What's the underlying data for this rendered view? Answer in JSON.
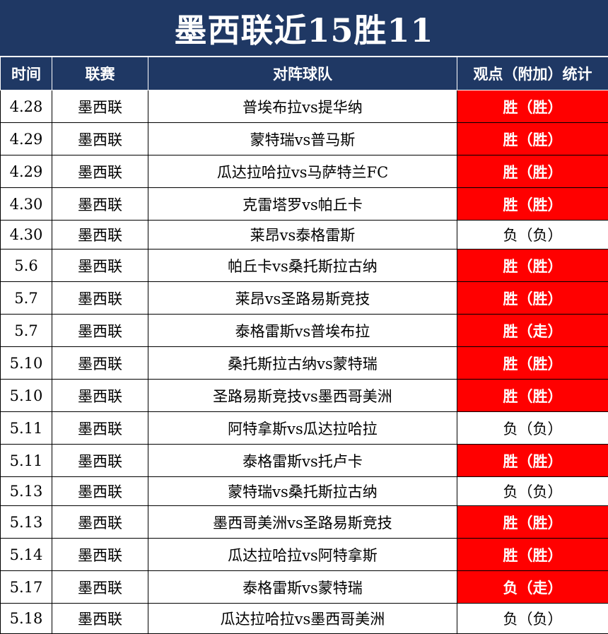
{
  "title": "墨西联近15胜11",
  "headers": {
    "time": "时间",
    "league": "联赛",
    "match": "对阵球队",
    "result": "观点（附加）统计"
  },
  "colors": {
    "header_bg": "#1f3864",
    "win_bg": "#ff0000"
  },
  "rows": [
    {
      "time": "4.28",
      "league": "墨西联",
      "match": "普埃布拉vs提华纳",
      "result": "胜（胜）",
      "highlight": true
    },
    {
      "time": "4.29",
      "league": "墨西联",
      "match": "蒙特瑞vs普马斯",
      "result": "胜（胜）",
      "highlight": true
    },
    {
      "time": "4.29",
      "league": "墨西联",
      "match": "瓜达拉哈拉vs马萨特兰FC",
      "result": "胜（胜）",
      "highlight": true
    },
    {
      "time": "4.30",
      "league": "墨西联",
      "match": "克雷塔罗vs帕丘卡",
      "result": "胜（胜）",
      "highlight": true
    },
    {
      "time": "4.30",
      "league": "墨西联",
      "match": "莱昂vs泰格雷斯",
      "result": "负（负）",
      "highlight": false
    },
    {
      "time": "5.6",
      "league": "墨西联",
      "match": "帕丘卡vs桑托斯拉古纳",
      "result": "胜（胜）",
      "highlight": true
    },
    {
      "time": "5.7",
      "league": "墨西联",
      "match": "莱昂vs圣路易斯竞技",
      "result": "胜（胜）",
      "highlight": true
    },
    {
      "time": "5.7",
      "league": "墨西联",
      "match": "泰格雷斯vs普埃布拉",
      "result": "胜（走）",
      "highlight": true
    },
    {
      "time": "5.10",
      "league": "墨西联",
      "match": "桑托斯拉古纳vs蒙特瑞",
      "result": "胜（胜）",
      "highlight": true
    },
    {
      "time": "5.10",
      "league": "墨西联",
      "match": "圣路易斯竞技vs墨西哥美洲",
      "result": "胜（胜）",
      "highlight": true
    },
    {
      "time": "5.11",
      "league": "墨西联",
      "match": "阿特拿斯vs瓜达拉哈拉",
      "result": "负（负）",
      "highlight": false
    },
    {
      "time": "5.11",
      "league": "墨西联",
      "match": "泰格雷斯vs托卢卡",
      "result": "胜（胜）",
      "highlight": true
    },
    {
      "time": "5.13",
      "league": "墨西联",
      "match": "蒙特瑞vs桑托斯拉古纳",
      "result": "负（负）",
      "highlight": false
    },
    {
      "time": "5.13",
      "league": "墨西联",
      "match": "墨西哥美洲vs圣路易斯竞技",
      "result": "胜（胜）",
      "highlight": true
    },
    {
      "time": "5.14",
      "league": "墨西联",
      "match": "瓜达拉哈拉vs阿特拿斯",
      "result": "胜（胜）",
      "highlight": true
    },
    {
      "time": "5.17",
      "league": "墨西联",
      "match": "泰格雷斯vs蒙特瑞",
      "result": "负（走）",
      "highlight": true
    },
    {
      "time": "5.18",
      "league": "墨西联",
      "match": "瓜达拉哈拉vs墨西哥美洲",
      "result": "负（负）",
      "highlight": false
    }
  ]
}
